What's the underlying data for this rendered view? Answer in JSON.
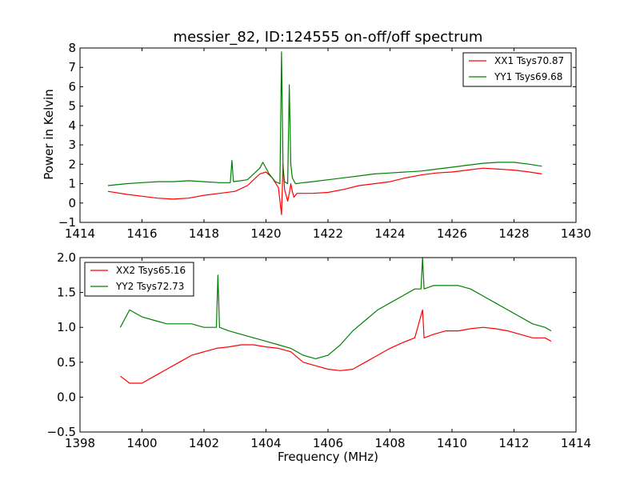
{
  "chart_data": [
    {
      "type": "line",
      "title": "messier_82, ID:124555 on-off/off spectrum",
      "xlabel": "",
      "ylabel": "Power in Kelvin",
      "xlim": [
        1414,
        1430
      ],
      "ylim": [
        -1,
        8
      ],
      "xticks": [
        "1414",
        "1416",
        "1418",
        "1420",
        "1422",
        "1424",
        "1426",
        "1428",
        "1430"
      ],
      "yticks": [
        "−1",
        "0",
        "1",
        "2",
        "3",
        "4",
        "5",
        "6",
        "7",
        "8"
      ],
      "legend_position": "top-right",
      "grid": false,
      "series": [
        {
          "name": "XX1 Tsys70.87",
          "color": "#ff0000",
          "x": [
            1414.9,
            1415.5,
            1416.0,
            1416.5,
            1417.0,
            1417.5,
            1418.0,
            1418.5,
            1419.0,
            1419.4,
            1419.8,
            1420.0,
            1420.2,
            1420.4,
            1420.5,
            1420.55,
            1420.6,
            1420.7,
            1420.75,
            1420.8,
            1420.85,
            1420.9,
            1421.0,
            1421.5,
            1422.0,
            1422.5,
            1423.0,
            1423.5,
            1424.0,
            1424.5,
            1425.0,
            1425.5,
            1426.0,
            1426.5,
            1427.0,
            1427.5,
            1428.0,
            1428.5,
            1428.9
          ],
          "values": [
            0.6,
            0.45,
            0.35,
            0.25,
            0.2,
            0.25,
            0.4,
            0.5,
            0.6,
            0.9,
            1.5,
            1.6,
            1.3,
            0.8,
            -0.6,
            2.0,
            0.7,
            0.1,
            0.5,
            1.0,
            0.6,
            0.3,
            0.5,
            0.5,
            0.55,
            0.7,
            0.9,
            1.0,
            1.1,
            1.3,
            1.45,
            1.55,
            1.6,
            1.7,
            1.8,
            1.75,
            1.7,
            1.6,
            1.5
          ]
        },
        {
          "name": "YY1 Tsys69.68",
          "color": "#008000",
          "x": [
            1414.9,
            1415.5,
            1416.0,
            1416.5,
            1417.0,
            1417.5,
            1418.0,
            1418.5,
            1418.85,
            1418.9,
            1418.95,
            1419.4,
            1419.8,
            1419.9,
            1420.1,
            1420.3,
            1420.45,
            1420.5,
            1420.55,
            1420.6,
            1420.7,
            1420.75,
            1420.8,
            1420.85,
            1420.95,
            1421.2,
            1421.5,
            1422.0,
            1422.5,
            1423.0,
            1423.5,
            1424.0,
            1424.5,
            1425.0,
            1425.5,
            1426.0,
            1426.5,
            1427.0,
            1427.5,
            1428.0,
            1428.5,
            1428.9
          ],
          "values": [
            0.9,
            1.0,
            1.05,
            1.1,
            1.1,
            1.15,
            1.1,
            1.05,
            1.05,
            2.2,
            1.1,
            1.2,
            1.8,
            2.1,
            1.5,
            1.1,
            1.0,
            7.8,
            1.8,
            1.1,
            1.0,
            6.1,
            2.0,
            1.3,
            1.0,
            1.05,
            1.1,
            1.2,
            1.3,
            1.4,
            1.5,
            1.55,
            1.6,
            1.65,
            1.75,
            1.85,
            1.95,
            2.05,
            2.1,
            2.1,
            2.0,
            1.9
          ]
        }
      ]
    },
    {
      "type": "line",
      "title": "",
      "xlabel": "Frequency (MHz)",
      "ylabel": "",
      "xlim": [
        1398,
        1414
      ],
      "ylim": [
        -0.5,
        2.0
      ],
      "xticks": [
        "1398",
        "1400",
        "1402",
        "1404",
        "1406",
        "1408",
        "1410",
        "1412",
        "1414"
      ],
      "yticks": [
        "−0.5",
        "0.0",
        "0.5",
        "1.0",
        "1.5",
        "2.0"
      ],
      "legend_position": "top-left",
      "grid": false,
      "series": [
        {
          "name": "XX2 Tsys65.16",
          "color": "#ff0000",
          "x": [
            1399.3,
            1399.6,
            1400.0,
            1400.4,
            1400.8,
            1401.2,
            1401.6,
            1402.0,
            1402.4,
            1402.8,
            1403.2,
            1403.6,
            1404.0,
            1404.4,
            1404.8,
            1405.2,
            1405.6,
            1406.0,
            1406.4,
            1406.8,
            1407.2,
            1407.6,
            1408.0,
            1408.4,
            1408.8,
            1409.05,
            1409.1,
            1409.4,
            1409.8,
            1410.2,
            1410.6,
            1411.0,
            1411.4,
            1411.8,
            1412.2,
            1412.6,
            1413.0,
            1413.2
          ],
          "values": [
            0.3,
            0.2,
            0.2,
            0.3,
            0.4,
            0.5,
            0.6,
            0.65,
            0.7,
            0.72,
            0.75,
            0.75,
            0.72,
            0.7,
            0.65,
            0.5,
            0.45,
            0.4,
            0.38,
            0.4,
            0.5,
            0.6,
            0.7,
            0.78,
            0.85,
            1.25,
            0.85,
            0.9,
            0.95,
            0.95,
            0.98,
            1.0,
            0.98,
            0.95,
            0.9,
            0.85,
            0.85,
            0.8
          ]
        },
        {
          "name": "YY2 Tsys72.73",
          "color": "#008000",
          "x": [
            1399.3,
            1399.6,
            1400.0,
            1400.4,
            1400.8,
            1401.2,
            1401.6,
            1402.0,
            1402.4,
            1402.45,
            1402.5,
            1402.8,
            1403.2,
            1403.6,
            1404.0,
            1404.4,
            1404.8,
            1405.2,
            1405.6,
            1406.0,
            1406.4,
            1406.8,
            1407.2,
            1407.6,
            1408.0,
            1408.4,
            1408.8,
            1409.0,
            1409.05,
            1409.1,
            1409.4,
            1409.8,
            1410.2,
            1410.6,
            1411.0,
            1411.4,
            1411.8,
            1412.2,
            1412.6,
            1413.0,
            1413.2
          ],
          "values": [
            1.0,
            1.25,
            1.15,
            1.1,
            1.05,
            1.05,
            1.05,
            1.0,
            1.0,
            1.75,
            1.0,
            0.95,
            0.9,
            0.85,
            0.8,
            0.75,
            0.7,
            0.6,
            0.55,
            0.6,
            0.75,
            0.95,
            1.1,
            1.25,
            1.35,
            1.45,
            1.55,
            1.55,
            2.0,
            1.55,
            1.6,
            1.6,
            1.6,
            1.55,
            1.45,
            1.35,
            1.25,
            1.15,
            1.05,
            1.0,
            0.95
          ]
        }
      ]
    }
  ]
}
